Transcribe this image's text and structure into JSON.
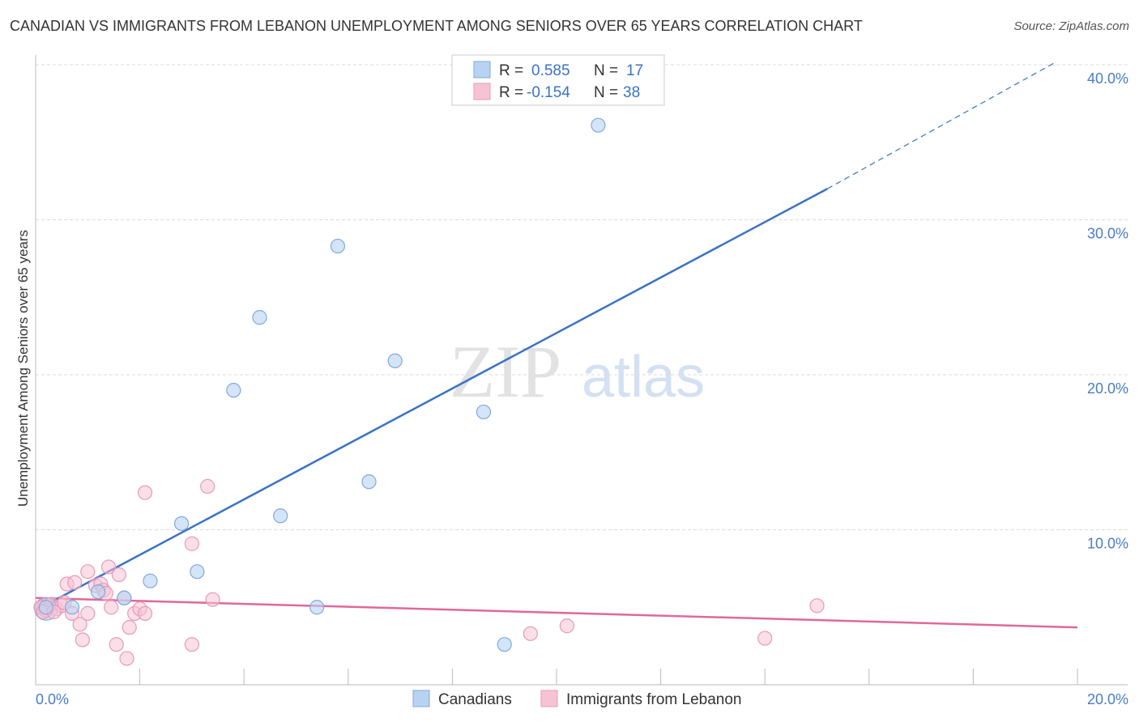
{
  "header": {
    "title": "CANADIAN VS IMMIGRANTS FROM LEBANON UNEMPLOYMENT AMONG SENIORS OVER 65 YEARS CORRELATION CHART",
    "source": "Source: ZipAtlas.com"
  },
  "watermark": {
    "zip": "ZIP",
    "atlas": "atlas"
  },
  "colors": {
    "blue": "#3a72c6",
    "blue_fill": "#b8d3f2",
    "pink": "#e0689a",
    "pink_fill": "#f6c3d5",
    "grid": "#dcdcdc"
  },
  "chart_data": {
    "type": "scatter",
    "title": "CANADIAN VS IMMIGRANTS FROM LEBANON UNEMPLOYMENT AMONG SENIORS OVER 65 YEARS CORRELATION CHART",
    "xlabel": "",
    "ylabel": "Unemployment Among Seniors over 65 years",
    "xlim": [
      0,
      20
    ],
    "ylim": [
      0,
      40
    ],
    "x_tick_labels": [
      "0.0%",
      "20.0%"
    ],
    "y_ticks": [
      10,
      20,
      30,
      40
    ],
    "y_tick_labels": [
      "10.0%",
      "20.0%",
      "30.0%",
      "40.0%"
    ],
    "grid": true,
    "legend_position": "top-center",
    "stats": [
      {
        "r_label": "R =",
        "r_value": "0.585",
        "n_label": "N =",
        "n_value": "17"
      },
      {
        "r_label": "R =",
        "r_value": "-0.154",
        "n_label": "N =",
        "n_value": "38"
      }
    ],
    "series": [
      {
        "name": "Canadians",
        "points": [
          [
            0.2,
            5.0
          ],
          [
            0.7,
            5.0
          ],
          [
            1.2,
            6.0
          ],
          [
            1.7,
            5.6
          ],
          [
            2.2,
            6.7
          ],
          [
            2.8,
            10.4
          ],
          [
            3.1,
            7.3
          ],
          [
            3.8,
            19.0
          ],
          [
            4.3,
            23.7
          ],
          [
            4.7,
            10.9
          ],
          [
            5.4,
            5.0
          ],
          [
            5.8,
            28.3
          ],
          [
            6.4,
            13.1
          ],
          [
            6.9,
            20.9
          ],
          [
            8.6,
            17.6
          ],
          [
            9.0,
            2.6
          ],
          [
            10.8,
            36.1
          ]
        ],
        "trend": {
          "x": [
            0.0,
            15.2
          ],
          "y": [
            4.8,
            32.0
          ]
        },
        "trend_extension": {
          "x": [
            15.2,
            19.6
          ],
          "y": [
            32.0,
            40.2
          ]
        }
      },
      {
        "name": "Immigrants from Lebanon",
        "points": [
          [
            0.1,
            5.0
          ],
          [
            0.2,
            4.8
          ],
          [
            0.3,
            5.2
          ],
          [
            0.4,
            4.9
          ],
          [
            0.5,
            5.1
          ],
          [
            0.6,
            6.5
          ],
          [
            0.7,
            4.6
          ],
          [
            0.75,
            6.6
          ],
          [
            0.85,
            3.9
          ],
          [
            0.9,
            2.9
          ],
          [
            1.0,
            4.6
          ],
          [
            1.0,
            7.3
          ],
          [
            1.15,
            6.4
          ],
          [
            1.25,
            6.5
          ],
          [
            1.3,
            6.1
          ],
          [
            1.4,
            7.6
          ],
          [
            1.45,
            5.0
          ],
          [
            1.55,
            2.6
          ],
          [
            1.6,
            7.1
          ],
          [
            1.7,
            5.6
          ],
          [
            1.75,
            1.7
          ],
          [
            1.8,
            3.7
          ],
          [
            1.9,
            4.6
          ],
          [
            2.0,
            4.9
          ],
          [
            2.1,
            12.4
          ],
          [
            2.1,
            4.6
          ],
          [
            3.0,
            9.1
          ],
          [
            3.0,
            2.6
          ],
          [
            3.3,
            12.8
          ],
          [
            3.4,
            5.5
          ],
          [
            9.5,
            3.3
          ],
          [
            10.2,
            3.8
          ],
          [
            14.0,
            3.0
          ],
          [
            15.0,
            5.1
          ],
          [
            0.15,
            4.7
          ],
          [
            0.35,
            4.7
          ],
          [
            0.55,
            5.3
          ],
          [
            1.35,
            5.9
          ]
        ],
        "trend": {
          "x": [
            0.0,
            20.0
          ],
          "y": [
            5.6,
            3.7
          ]
        }
      }
    ]
  }
}
